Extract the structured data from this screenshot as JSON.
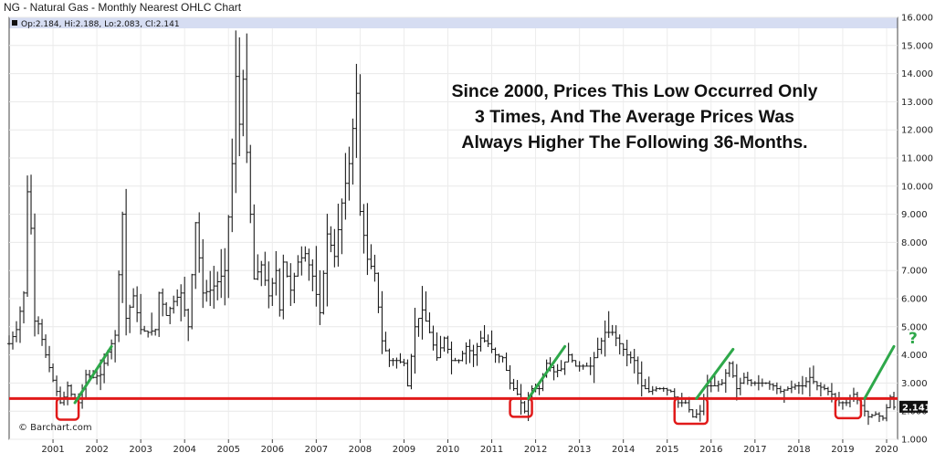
{
  "title": "NG - Natural Gas - Monthly Nearest OHLC Chart",
  "ohlc_readout": "Op:2.184, Hi:2.188, Lo:2.083, Cl:2.141",
  "watermark": "© Barchart.com",
  "annotation": [
    "Since 2000, Prices This Low Occurred Only",
    "3 Times, And The Average Prices Was",
    "Always Higher The Following 36-Months."
  ],
  "last_price_label": "2.141",
  "question_mark": "?",
  "colors": {
    "bars": "#1a1a1a",
    "support_line": "#e11a1a",
    "trend_arrows": "#2ea84a",
    "highlight_box": "#e11a1a",
    "header_band": "#d6ddf2"
  },
  "chart_data": {
    "type": "ohlc",
    "title": "NG - Natural Gas - Monthly Nearest OHLC Chart",
    "ylim": [
      1,
      16
    ],
    "y_ticks": [
      "16.000",
      "15.000",
      "14.000",
      "13.000",
      "12.000",
      "11.000",
      "10.000",
      "9.000",
      "8.000",
      "7.000",
      "6.000",
      "5.000",
      "4.000",
      "3.000",
      "2.000",
      "1.000"
    ],
    "x_ticks": [
      "2001",
      "2002",
      "2003",
      "2004",
      "2005",
      "2006",
      "2007",
      "2008",
      "2009",
      "2010",
      "2011",
      "2012",
      "2013",
      "2014",
      "2015",
      "2016",
      "2017",
      "2018",
      "2019",
      "2020"
    ],
    "x_range": [
      "2000-07",
      "2020-10"
    ],
    "support_level": 2.45,
    "last_close": 2.141,
    "closes": [
      [
        "2000-07",
        4.4
      ],
      [
        "2000-09",
        4.9
      ],
      [
        "2000-11",
        6.2
      ],
      [
        "2000-12",
        9.8
      ],
      [
        "2001-01",
        8.5
      ],
      [
        "2001-02",
        5.2
      ],
      [
        "2001-03",
        5.1
      ],
      [
        "2001-05",
        4.0
      ],
      [
        "2001-07",
        3.1
      ],
      [
        "2001-09",
        2.3
      ],
      [
        "2001-10",
        2.5
      ],
      [
        "2001-11",
        2.9
      ],
      [
        "2001-12",
        2.6
      ],
      [
        "2002-02",
        2.3
      ],
      [
        "2002-04",
        3.3
      ],
      [
        "2002-06",
        3.2
      ],
      [
        "2002-08",
        3.3
      ],
      [
        "2002-10",
        4.1
      ],
      [
        "2002-12",
        4.7
      ],
      [
        "2003-02",
        9.0
      ],
      [
        "2003-03",
        5.3
      ],
      [
        "2003-05",
        6.1
      ],
      [
        "2003-07",
        4.9
      ],
      [
        "2003-09",
        4.8
      ],
      [
        "2003-11",
        4.9
      ],
      [
        "2003-12",
        6.2
      ],
      [
        "2004-02",
        5.4
      ],
      [
        "2004-04",
        5.9
      ],
      [
        "2004-06",
        6.2
      ],
      [
        "2004-08",
        5.0
      ],
      [
        "2004-10",
        8.7
      ],
      [
        "2004-12",
        6.2
      ],
      [
        "2005-02",
        6.3
      ],
      [
        "2005-04",
        6.6
      ],
      [
        "2005-06",
        7.0
      ],
      [
        "2005-08",
        10.8
      ],
      [
        "2005-09",
        13.9
      ],
      [
        "2005-10",
        12.2
      ],
      [
        "2005-11",
        13.8
      ],
      [
        "2005-12",
        11.2
      ],
      [
        "2006-01",
        9.0
      ],
      [
        "2006-02",
        6.7
      ],
      [
        "2006-04",
        7.2
      ],
      [
        "2006-06",
        6.1
      ],
      [
        "2006-08",
        7.0
      ],
      [
        "2006-09",
        5.6
      ],
      [
        "2006-10",
        7.3
      ],
      [
        "2006-12",
        6.3
      ],
      [
        "2007-02",
        7.3
      ],
      [
        "2007-04",
        7.6
      ],
      [
        "2007-06",
        6.8
      ],
      [
        "2007-08",
        5.5
      ],
      [
        "2007-10",
        8.3
      ],
      [
        "2007-12",
        7.5
      ],
      [
        "2008-02",
        9.4
      ],
      [
        "2008-04",
        10.8
      ],
      [
        "2008-06",
        13.3
      ],
      [
        "2008-07",
        9.1
      ],
      [
        "2008-09",
        7.4
      ],
      [
        "2008-11",
        6.9
      ],
      [
        "2009-01",
        4.5
      ],
      [
        "2009-03",
        3.8
      ],
      [
        "2009-05",
        3.8
      ],
      [
        "2009-07",
        3.7
      ],
      [
        "2009-08",
        2.9
      ],
      [
        "2009-10",
        5.0
      ],
      [
        "2009-12",
        5.6
      ],
      [
        "2010-02",
        4.8
      ],
      [
        "2010-04",
        3.9
      ],
      [
        "2010-06",
        4.6
      ],
      [
        "2010-08",
        3.8
      ],
      [
        "2010-10",
        3.8
      ],
      [
        "2010-12",
        4.3
      ],
      [
        "2011-02",
        4.0
      ],
      [
        "2011-04",
        4.6
      ],
      [
        "2011-06",
        4.4
      ],
      [
        "2011-08",
        4.0
      ],
      [
        "2011-10",
        3.9
      ],
      [
        "2011-12",
        3.0
      ],
      [
        "2012-02",
        2.6
      ],
      [
        "2012-04",
        2.0
      ],
      [
        "2012-06",
        2.8
      ],
      [
        "2012-08",
        2.8
      ],
      [
        "2012-10",
        3.7
      ],
      [
        "2012-12",
        3.4
      ],
      [
        "2013-02",
        3.5
      ],
      [
        "2013-04",
        4.0
      ],
      [
        "2013-06",
        3.6
      ],
      [
        "2013-08",
        3.6
      ],
      [
        "2013-10",
        3.6
      ],
      [
        "2013-12",
        4.2
      ],
      [
        "2014-02",
        4.8
      ],
      [
        "2014-04",
        4.8
      ],
      [
        "2014-06",
        4.4
      ],
      [
        "2014-08",
        4.0
      ],
      [
        "2014-10",
        3.8
      ],
      [
        "2014-12",
        2.9
      ],
      [
        "2015-02",
        2.7
      ],
      [
        "2015-04",
        2.8
      ],
      [
        "2015-06",
        2.8
      ],
      [
        "2015-08",
        2.7
      ],
      [
        "2015-10",
        2.3
      ],
      [
        "2015-12",
        2.3
      ],
      [
        "2016-02",
        1.8
      ],
      [
        "2016-04",
        2.0
      ],
      [
        "2016-06",
        2.9
      ],
      [
        "2016-08",
        2.9
      ],
      [
        "2016-10",
        3.0
      ],
      [
        "2016-12",
        3.7
      ],
      [
        "2017-02",
        2.8
      ],
      [
        "2017-04",
        3.2
      ],
      [
        "2017-06",
        3.0
      ],
      [
        "2017-08",
        3.0
      ],
      [
        "2017-10",
        3.0
      ],
      [
        "2017-12",
        2.9
      ],
      [
        "2018-02",
        2.7
      ],
      [
        "2018-04",
        2.8
      ],
      [
        "2018-06",
        2.9
      ],
      [
        "2018-08",
        2.9
      ],
      [
        "2018-10",
        3.2
      ],
      [
        "2018-12",
        2.9
      ],
      [
        "2019-02",
        2.8
      ],
      [
        "2019-04",
        2.6
      ],
      [
        "2019-06",
        2.3
      ],
      [
        "2019-08",
        2.3
      ],
      [
        "2019-10",
        2.6
      ],
      [
        "2019-12",
        2.2
      ],
      [
        "2020-02",
        1.8
      ],
      [
        "2020-04",
        1.9
      ],
      [
        "2020-06",
        1.75
      ],
      [
        "2020-08",
        2.5
      ],
      [
        "2020-09",
        2.141
      ]
    ],
    "highlights": [
      {
        "from": "2001-08",
        "to": "2002-02",
        "low": 1.7,
        "high": 2.45
      },
      {
        "from": "2011-12",
        "to": "2012-06",
        "low": 1.8,
        "high": 2.45
      },
      {
        "from": "2015-09",
        "to": "2016-06",
        "low": 1.55,
        "high": 2.45
      },
      {
        "from": "2019-05",
        "to": "2019-12",
        "low": 1.75,
        "high": 2.45
      }
    ],
    "trend_arrows": [
      {
        "from": [
          "2002-01",
          2.3
        ],
        "to": [
          "2002-11",
          4.3
        ]
      },
      {
        "from": [
          "2012-05",
          2.45
        ],
        "to": [
          "2013-03",
          4.3
        ]
      },
      {
        "from": [
          "2016-03",
          2.45
        ],
        "to": [
          "2017-01",
          4.2
        ]
      },
      {
        "from": [
          "2020-01",
          2.45
        ],
        "to": [
          "2020-09",
          4.3
        ]
      }
    ]
  }
}
